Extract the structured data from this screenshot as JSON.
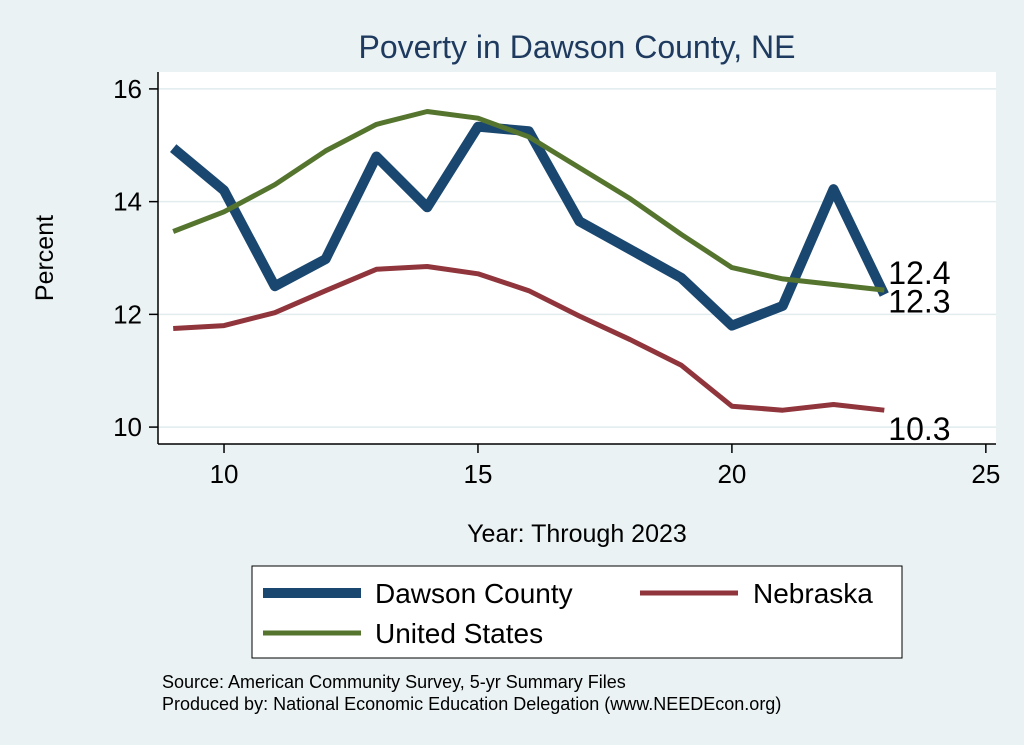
{
  "chart_data": {
    "type": "line",
    "title": "Poverty in Dawson County, NE",
    "xlabel": "Year: Through 2023",
    "ylabel": "Percent",
    "xlim": [
      8.7,
      25.2
    ],
    "ylim": [
      9.7,
      16.3
    ],
    "xticks": [
      10,
      15,
      20,
      25
    ],
    "yticks": [
      10,
      12,
      14,
      16
    ],
    "grid": true,
    "series": [
      {
        "name": "Dawson County",
        "color": "#1a476f",
        "x": [
          9,
          10,
          11,
          12,
          13,
          14,
          15,
          16,
          17,
          18,
          19,
          20,
          21,
          22,
          23
        ],
        "values": [
          14.95,
          14.2,
          12.5,
          12.98,
          14.8,
          13.9,
          15.33,
          15.25,
          13.65,
          13.15,
          12.65,
          11.8,
          12.15,
          14.22,
          12.35
        ],
        "end_label": "12.3"
      },
      {
        "name": "Nebraska",
        "color": "#90353b",
        "x": [
          9,
          10,
          11,
          12,
          13,
          14,
          15,
          16,
          17,
          18,
          19,
          20,
          21,
          22,
          23
        ],
        "values": [
          11.75,
          11.8,
          12.03,
          12.42,
          12.8,
          12.85,
          12.72,
          12.42,
          11.97,
          11.55,
          11.1,
          10.37,
          10.3,
          10.4,
          10.3
        ],
        "end_label": "10.3"
      },
      {
        "name": "United States",
        "color": "#55752f",
        "x": [
          9,
          10,
          11,
          12,
          13,
          14,
          15,
          16,
          17,
          18,
          19,
          20,
          21,
          22,
          23
        ],
        "values": [
          13.47,
          13.82,
          14.3,
          14.9,
          15.37,
          15.6,
          15.48,
          15.15,
          14.6,
          14.05,
          13.42,
          12.83,
          12.63,
          12.53,
          12.43
        ],
        "end_label": "12.4"
      }
    ],
    "legend": {
      "position": "bottom",
      "entries": [
        "Dawson County",
        "Nebraska",
        "United States"
      ]
    },
    "notes": [
      "Source: American Community Survey, 5-yr Summary Files",
      "Produced by: National Economic Education Delegation (www.NEEDEcon.org)"
    ]
  }
}
